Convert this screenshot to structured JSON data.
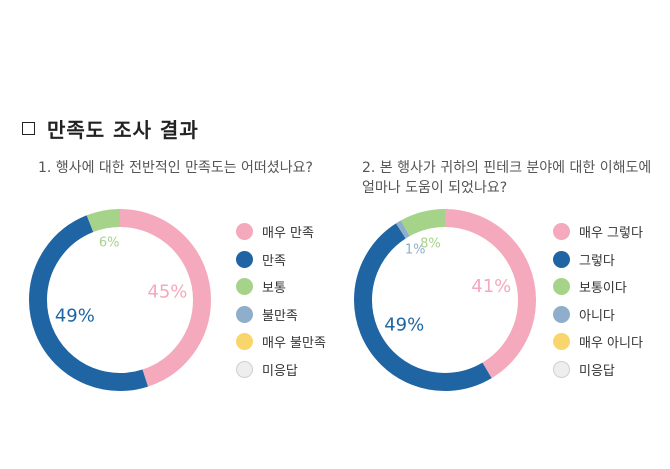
{
  "page": {
    "heading": "만족도 조사 결과"
  },
  "colors": {
    "pink": "#f4a9bd",
    "blue": "#1f64a3",
    "green": "#a6d38a",
    "light_blue": "#8eaecb",
    "yellow": "#f9d66b",
    "none": "#eeeeee"
  },
  "chart_data": [
    {
      "type": "pie",
      "title": "1. 행사에 대한 전반적인 만족도는 어떠셨나요?",
      "legend": [
        "매우 만족",
        "만족",
        "보통",
        "불만족",
        "매우 불만족",
        "미응답"
      ],
      "slices": [
        {
          "label": "매우 만족",
          "value": 45,
          "display": "45%",
          "color": "#f4a9bd"
        },
        {
          "label": "만족",
          "value": 49,
          "display": "49%",
          "color": "#1f64a3"
        },
        {
          "label": "보통",
          "value": 6,
          "display": "6%",
          "color": "#a6d38a"
        }
      ]
    },
    {
      "type": "pie",
      "title": "2. 본 행사가 귀하의 핀테크 분야에 대한 이해도에 얼마나 도움이 되었나요?",
      "legend": [
        "매우 그렇다",
        "그렇다",
        "보통이다",
        "아니다",
        "매우 아니다",
        "미응답"
      ],
      "slices": [
        {
          "label": "매우 그렇다",
          "value": 41,
          "display": "41%",
          "color": "#f4a9bd"
        },
        {
          "label": "그렇다",
          "value": 49,
          "display": "49%",
          "color": "#1f64a3"
        },
        {
          "label": "아니다",
          "value": 1,
          "display": "1%",
          "color": "#8eaecb"
        },
        {
          "label": "보통이다",
          "value": 8,
          "display": "8%",
          "color": "#a6d38a"
        }
      ]
    }
  ],
  "legend_colors": [
    "#f4a9bd",
    "#1f64a3",
    "#a6d38a",
    "#8eaecb",
    "#f9d66b",
    "#eeeeee"
  ]
}
